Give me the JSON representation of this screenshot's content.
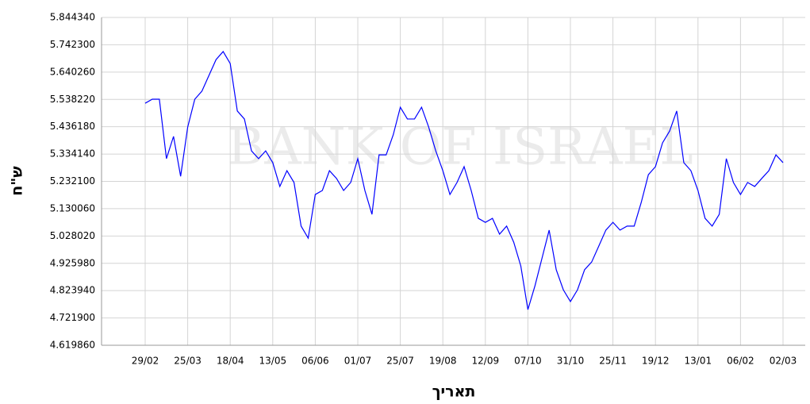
{
  "chart_data": {
    "type": "line",
    "x_label": "תאריך",
    "y_label": "ש\"ח",
    "watermark": "BANK OF ISRAEL",
    "color": "#0000ff",
    "grid": true,
    "categories": [
      "29/02",
      null,
      null,
      null,
      null,
      null,
      "25/03",
      null,
      null,
      null,
      null,
      null,
      "18/04",
      null,
      null,
      null,
      null,
      null,
      "13/05",
      null,
      null,
      null,
      null,
      null,
      "06/06",
      null,
      null,
      null,
      null,
      null,
      "01/07",
      null,
      null,
      null,
      null,
      null,
      "25/07",
      null,
      null,
      null,
      null,
      null,
      "19/08",
      null,
      null,
      null,
      null,
      null,
      "12/09",
      null,
      null,
      null,
      null,
      null,
      "07/10",
      null,
      null,
      null,
      null,
      null,
      "31/10",
      null,
      null,
      null,
      null,
      null,
      "25/11",
      null,
      null,
      null,
      null,
      null,
      "19/12",
      null,
      null,
      null,
      null,
      null,
      "13/01",
      null,
      null,
      null,
      null,
      null,
      "06/02",
      null,
      null,
      null,
      null,
      null,
      "02/03"
    ],
    "values": [
      5.524,
      5.539,
      5.539,
      5.317,
      5.4,
      5.251,
      5.435,
      5.539,
      5.569,
      5.628,
      5.687,
      5.717,
      5.672,
      5.495,
      5.465,
      5.346,
      5.317,
      5.346,
      5.302,
      5.213,
      5.272,
      5.228,
      5.065,
      5.02,
      5.183,
      5.198,
      5.272,
      5.243,
      5.198,
      5.228,
      5.317,
      5.198,
      5.109,
      5.331,
      5.331,
      5.406,
      5.509,
      5.465,
      5.465,
      5.509,
      5.435,
      5.346,
      5.272,
      5.183,
      5.228,
      5.287,
      5.198,
      5.094,
      5.079,
      5.094,
      5.035,
      5.065,
      5.005,
      4.916,
      4.753,
      4.842,
      4.946,
      5.05,
      4.902,
      4.827,
      4.783,
      4.827,
      4.902,
      4.931,
      4.99,
      5.05,
      5.079,
      5.05,
      5.065,
      5.065,
      5.154,
      5.257,
      5.287,
      5.376,
      5.42,
      5.495,
      5.302,
      5.272,
      5.198,
      5.094,
      5.065,
      5.109,
      5.317,
      5.228,
      5.183,
      5.228,
      5.213,
      5.243,
      5.272,
      5.331,
      5.302
    ],
    "ylim": [
      4.61986,
      5.84434
    ],
    "yticks": [
      {
        "value": 4.61986,
        "label": "4.619860"
      },
      {
        "value": 4.7219,
        "label": "4.721900"
      },
      {
        "value": 4.82394,
        "label": "4.823940"
      },
      {
        "value": 4.92598,
        "label": "4.925980"
      },
      {
        "value": 5.02802,
        "label": "5.028020"
      },
      {
        "value": 5.13006,
        "label": "5.130060"
      },
      {
        "value": 5.2321,
        "label": "5.232100"
      },
      {
        "value": 5.33414,
        "label": "5.334140"
      },
      {
        "value": 5.43618,
        "label": "5.436180"
      },
      {
        "value": 5.53822,
        "label": "5.538220"
      },
      {
        "value": 5.64026,
        "label": "5.640260"
      },
      {
        "value": 5.7423,
        "label": "5.742300"
      },
      {
        "value": 5.84434,
        "label": "5.844340"
      }
    ]
  }
}
